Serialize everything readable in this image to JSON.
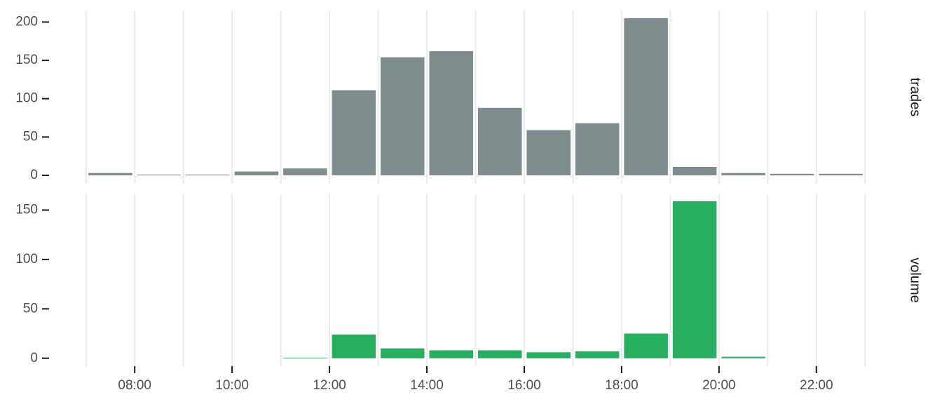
{
  "chart_data": [
    {
      "type": "histogram",
      "facet_label": "trades",
      "color": "#7f8c8d",
      "bins": [
        7,
        8,
        9,
        10,
        11,
        12,
        13,
        14,
        15,
        16,
        17,
        18,
        19,
        20,
        21,
        22,
        23
      ],
      "values": [
        3,
        1,
        1,
        5,
        9,
        111,
        154,
        162,
        88,
        59,
        68,
        205,
        11,
        3,
        2,
        2
      ],
      "xlim": [
        6.5,
        23.5
      ],
      "ylim": [
        -11,
        215
      ],
      "yticks": [
        0,
        50,
        100,
        150,
        200
      ],
      "grid": true
    },
    {
      "type": "histogram",
      "facet_label": "volume",
      "color": "#27ae60",
      "bins": [
        7,
        8,
        9,
        10,
        11,
        12,
        13,
        14,
        15,
        16,
        17,
        18,
        19,
        20,
        21,
        22,
        23
      ],
      "values": [
        null,
        null,
        null,
        null,
        0.5,
        24,
        10,
        8,
        8,
        6,
        7,
        25,
        159,
        1.5,
        null,
        null
      ],
      "xlim": [
        6.5,
        23.5
      ],
      "ylim": [
        -8,
        166
      ],
      "yticks": [
        0,
        50,
        100,
        150
      ],
      "grid": true,
      "xticks": [
        {
          "value": 8,
          "label": "08:00"
        },
        {
          "value": 10,
          "label": "10:00"
        },
        {
          "value": 12,
          "label": "12:00"
        },
        {
          "value": 14,
          "label": "14:00"
        },
        {
          "value": 16,
          "label": "16:00"
        },
        {
          "value": 18,
          "label": "18:00"
        },
        {
          "value": 20,
          "label": "20:00"
        },
        {
          "value": 22,
          "label": "22:00"
        }
      ]
    }
  ]
}
